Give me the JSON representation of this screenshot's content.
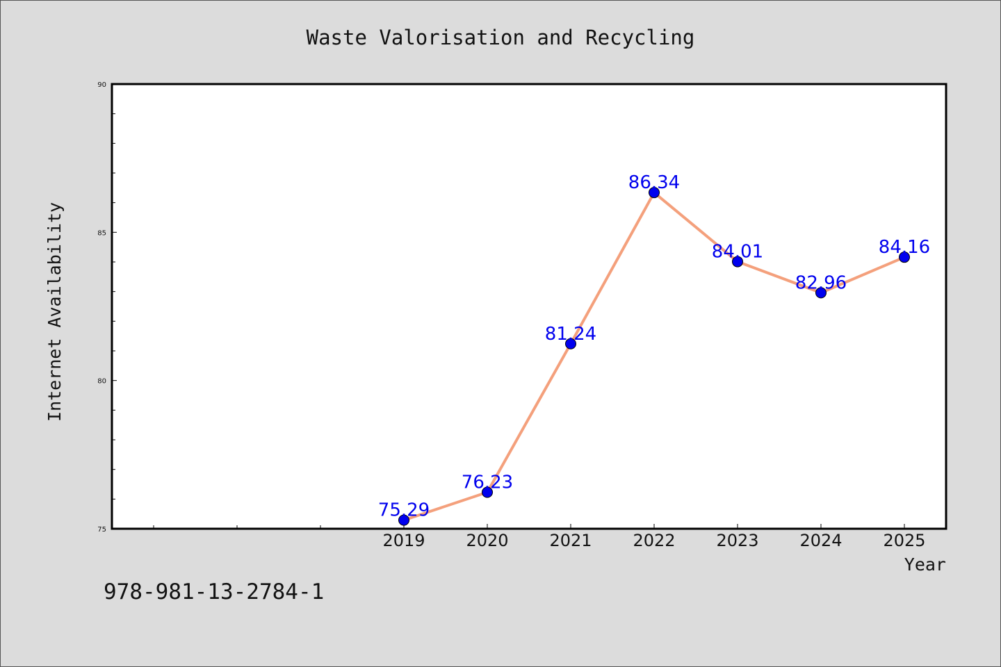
{
  "chart_data": {
    "type": "line",
    "title": "Waste Valorisation and Recycling",
    "xlabel": "Year",
    "ylabel": "Internet Availability",
    "categories": [
      "2019",
      "2020",
      "2021",
      "2022",
      "2023",
      "2024",
      "2025"
    ],
    "series": [
      {
        "values": [
          75.29,
          76.23,
          81.24,
          86.34,
          84.01,
          82.96,
          84.16
        ]
      }
    ],
    "data_labels": [
      "75.29",
      "76.23",
      "81.24",
      "86.34",
      "84.01",
      "82.96",
      "84.16"
    ],
    "ylim": [
      75,
      90
    ],
    "yticks": [
      "75",
      "80",
      "85",
      "90"
    ],
    "grid": false,
    "line_color": "#f4a07c",
    "marker_color": "#0000ee",
    "label_color": "#0000ee"
  },
  "footer": {
    "isbn": "978-981-13-2784-1"
  }
}
